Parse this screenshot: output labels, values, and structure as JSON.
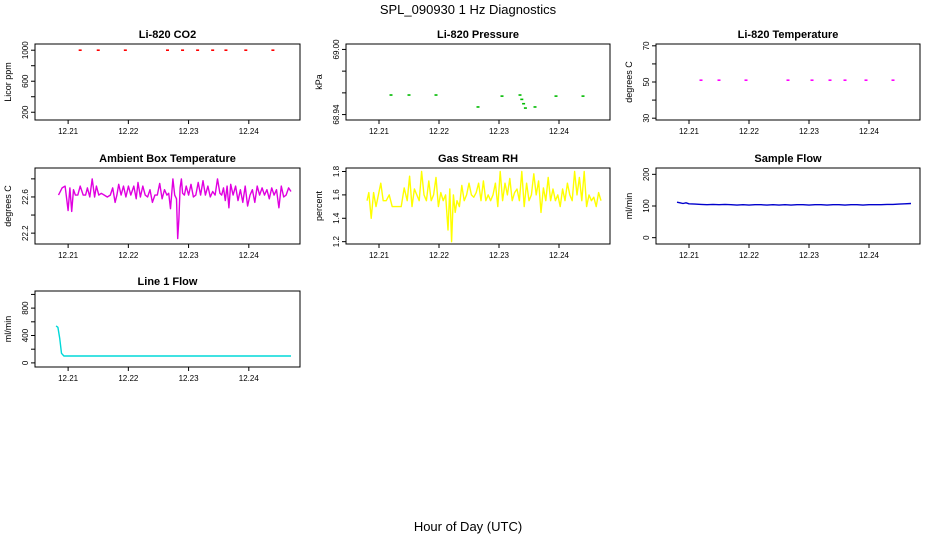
{
  "figure": {
    "title": "SPL_090930  1 Hz Diagnostics",
    "xlabel": "Hour of Day (UTC)"
  },
  "chart_data": [
    {
      "type": "scatter",
      "title": "Li-820 CO2",
      "ylabel": "Licor ppm",
      "color": "#ff0000",
      "xlim": [
        12.2045,
        12.2485
      ],
      "ylim": [
        100,
        1080
      ],
      "xticks": [
        12.21,
        12.22,
        12.23,
        12.24
      ],
      "xtick_labels": [
        "12.21",
        "12.22",
        "12.23",
        "12.24"
      ],
      "yticks": [
        200,
        400,
        600,
        800,
        1000
      ],
      "ytick_labels": [
        "200",
        "",
        "600",
        "",
        "1000"
      ],
      "x": [
        12.212,
        12.215,
        12.2195,
        12.2265,
        12.229,
        12.2315,
        12.234,
        12.2362,
        12.2395,
        12.244
      ],
      "y": [
        1000,
        1000,
        1000,
        1000,
        1000,
        1000,
        1000,
        1000,
        1000,
        1000
      ]
    },
    {
      "type": "scatter",
      "title": "Li-820 Pressure",
      "ylabel": "kPa",
      "color": "#00bb00",
      "xlim": [
        12.2045,
        12.2485
      ],
      "ylim": [
        68.935,
        69.005
      ],
      "xticks": [
        12.21,
        12.22,
        12.23,
        12.24
      ],
      "xtick_labels": [
        "12.21",
        "12.22",
        "12.23",
        "12.24"
      ],
      "yticks": [
        68.94,
        68.96,
        68.98,
        69.0
      ],
      "ytick_labels": [
        "68.94",
        "",
        "",
        "69.00"
      ],
      "x": [
        12.212,
        12.215,
        12.2195,
        12.2265,
        12.2305,
        12.2335,
        12.2338,
        12.2341,
        12.2344,
        12.236,
        12.2395,
        12.244
      ],
      "y": [
        68.958,
        68.958,
        68.958,
        68.947,
        68.957,
        68.958,
        68.954,
        68.95,
        68.946,
        68.947,
        68.957,
        68.957
      ]
    },
    {
      "type": "scatter",
      "title": "Li-820 Temperature",
      "ylabel": "degrees C",
      "color": "#ff00ff",
      "xlim": [
        12.2045,
        12.2485
      ],
      "ylim": [
        29,
        71
      ],
      "xticks": [
        12.21,
        12.22,
        12.23,
        12.24
      ],
      "xtick_labels": [
        "12.21",
        "12.22",
        "12.23",
        "12.24"
      ],
      "yticks": [
        30,
        40,
        50,
        60,
        70
      ],
      "ytick_labels": [
        "30",
        "",
        "50",
        "",
        "70"
      ],
      "x": [
        12.212,
        12.215,
        12.2195,
        12.2265,
        12.2305,
        12.2335,
        12.236,
        12.2395,
        12.244
      ],
      "y": [
        51,
        51,
        51,
        51,
        51,
        51,
        51,
        51,
        51
      ]
    },
    {
      "type": "line",
      "title": "Ambient Box Temperature",
      "ylabel": "degrees C",
      "color": "#e000e0",
      "xlim": [
        12.2045,
        12.2485
      ],
      "ylim": [
        22.08,
        22.92
      ],
      "xticks": [
        12.21,
        12.22,
        12.23,
        12.24
      ],
      "xtick_labels": [
        "12.21",
        "12.22",
        "12.23",
        "12.24"
      ],
      "yticks": [
        22.2,
        22.4,
        22.6,
        22.8
      ],
      "ytick_labels": [
        "22.2",
        "",
        "22.6",
        ""
      ],
      "x": [
        12.2084,
        12.209,
        12.2095,
        12.21,
        12.2103,
        12.2106,
        12.2109,
        12.2112,
        12.2116,
        12.212,
        12.2125,
        12.2129,
        12.2132,
        12.2136,
        12.214,
        12.2144,
        12.2147,
        12.2151,
        12.2155,
        12.216,
        12.2165,
        12.217,
        12.2174,
        12.2178,
        12.2181,
        12.2184,
        12.2188,
        12.2192,
        12.2196,
        12.22,
        12.2204,
        12.2209,
        12.2213,
        12.2216,
        12.222,
        12.2224,
        12.2228,
        12.2232,
        12.2236,
        12.224,
        12.2244,
        12.2248,
        12.2252,
        12.2256,
        12.226,
        12.2264,
        12.2267,
        12.227,
        12.2274,
        12.2277,
        12.228,
        12.2282,
        12.2284,
        12.2286,
        12.2288,
        12.229,
        12.2293,
        12.2296,
        12.23,
        12.2304,
        12.2308,
        12.2312,
        12.2316,
        12.232,
        12.2324,
        12.2328,
        12.2332,
        12.2336,
        12.234,
        12.2344,
        12.2348,
        12.2352,
        12.2355,
        12.2358,
        12.2361,
        12.2364,
        12.2367,
        12.237,
        12.2374,
        12.2378,
        12.2382,
        12.2386,
        12.239,
        12.2394,
        12.2398,
        12.2402,
        12.2406,
        12.241,
        12.2414,
        12.2418,
        12.2422,
        12.2426,
        12.243,
        12.2434,
        12.2438,
        12.2442,
        12.2446,
        12.245,
        12.2454,
        12.2458,
        12.2462,
        12.2466,
        12.247
      ],
      "y": [
        22.62,
        22.7,
        22.72,
        22.45,
        22.7,
        22.44,
        22.68,
        22.62,
        22.62,
        22.72,
        22.62,
        22.62,
        22.7,
        22.6,
        22.8,
        22.6,
        22.72,
        22.62,
        22.64,
        22.62,
        22.6,
        22.62,
        22.7,
        22.54,
        22.62,
        22.74,
        22.62,
        22.72,
        22.6,
        22.72,
        22.62,
        22.72,
        22.58,
        22.76,
        22.6,
        22.72,
        22.62,
        22.6,
        22.68,
        22.54,
        22.62,
        22.62,
        22.75,
        22.58,
        22.68,
        22.62,
        22.64,
        22.47,
        22.8,
        22.62,
        22.58,
        22.14,
        22.36,
        22.7,
        22.8,
        22.64,
        22.62,
        22.72,
        22.62,
        22.74,
        22.6,
        22.62,
        22.76,
        22.62,
        22.78,
        22.62,
        22.72,
        22.6,
        22.66,
        22.62,
        22.8,
        22.64,
        22.62,
        22.7,
        22.56,
        22.72,
        22.48,
        22.74,
        22.62,
        22.72,
        22.56,
        22.68,
        22.54,
        22.72,
        22.5,
        22.62,
        22.68,
        22.54,
        22.72,
        22.62,
        22.7,
        22.62,
        22.68,
        22.58,
        22.7,
        22.62,
        22.68,
        22.48,
        22.72,
        22.6,
        22.62,
        22.7,
        22.66
      ]
    },
    {
      "type": "line",
      "title": "Gas Stream RH",
      "ylabel": "percent",
      "color": "#ffff00",
      "xlim": [
        12.2045,
        12.2485
      ],
      "ylim": [
        1.18,
        1.83
      ],
      "xticks": [
        12.21,
        12.22,
        12.23,
        12.24
      ],
      "xtick_labels": [
        "12.21",
        "12.22",
        "12.23",
        "12.24"
      ],
      "yticks": [
        1.2,
        1.4,
        1.6,
        1.8
      ],
      "ytick_labels": [
        "1.2",
        "1.4",
        "1.6",
        "1.8"
      ],
      "x": [
        12.208,
        12.2083,
        12.2087,
        12.2091,
        12.2095,
        12.2099,
        12.2103,
        12.2107,
        12.2112,
        12.2117,
        12.2122,
        12.2127,
        12.2132,
        12.2137,
        12.2142,
        12.2147,
        12.2151,
        12.2155,
        12.2159,
        12.2163,
        12.2167,
        12.2171,
        12.2175,
        12.2179,
        12.2183,
        12.2187,
        12.2191,
        12.2195,
        12.2199,
        12.2203,
        12.2207,
        12.2211,
        12.2215,
        12.2218,
        12.2221,
        12.2224,
        12.2227,
        12.223,
        12.2234,
        12.2238,
        12.2242,
        12.2246,
        12.225,
        12.2254,
        12.2258,
        12.2262,
        12.2266,
        12.227,
        12.2274,
        12.2278,
        12.2282,
        12.2286,
        12.229,
        12.2294,
        12.2298,
        12.2302,
        12.2306,
        12.231,
        12.2314,
        12.2318,
        12.2322,
        12.2326,
        12.233,
        12.2334,
        12.2338,
        12.2342,
        12.2346,
        12.235,
        12.2354,
        12.2358,
        12.2362,
        12.2366,
        12.237,
        12.2374,
        12.2378,
        12.2382,
        12.2386,
        12.239,
        12.2394,
        12.2398,
        12.2402,
        12.2406,
        12.241,
        12.2414,
        12.2418,
        12.2422,
        12.2426,
        12.243,
        12.2434,
        12.2438,
        12.2442,
        12.2446,
        12.245,
        12.2454,
        12.2458,
        12.2462,
        12.2466,
        12.247
      ],
      "y": [
        1.55,
        1.62,
        1.4,
        1.62,
        1.5,
        1.6,
        1.7,
        1.55,
        1.55,
        1.6,
        1.5,
        1.5,
        1.5,
        1.5,
        1.66,
        1.55,
        1.76,
        1.5,
        1.65,
        1.6,
        1.55,
        1.8,
        1.6,
        1.55,
        1.72,
        1.55,
        1.6,
        1.75,
        1.5,
        1.62,
        1.55,
        1.6,
        1.3,
        1.65,
        1.2,
        1.6,
        1.45,
        1.55,
        1.5,
        1.68,
        1.55,
        1.6,
        1.7,
        1.6,
        1.58,
        1.62,
        1.7,
        1.55,
        1.72,
        1.55,
        1.6,
        1.55,
        1.6,
        1.7,
        1.5,
        1.8,
        1.55,
        1.7,
        1.6,
        1.74,
        1.55,
        1.62,
        1.65,
        1.55,
        1.8,
        1.5,
        1.7,
        1.55,
        1.6,
        1.78,
        1.6,
        1.72,
        1.45,
        1.66,
        1.55,
        1.75,
        1.55,
        1.65,
        1.55,
        1.6,
        1.5,
        1.65,
        1.55,
        1.7,
        1.6,
        1.55,
        1.8,
        1.6,
        1.75,
        1.55,
        1.8,
        1.5,
        1.6,
        1.55,
        1.58,
        1.5,
        1.62,
        1.55
      ]
    },
    {
      "type": "line",
      "title": "Sample Flow",
      "ylabel": "ml/min",
      "color": "#0000cc",
      "xlim": [
        12.2045,
        12.2485
      ],
      "ylim": [
        -20,
        220
      ],
      "xticks": [
        12.21,
        12.22,
        12.23,
        12.24
      ],
      "xtick_labels": [
        "12.21",
        "12.22",
        "12.23",
        "12.24"
      ],
      "yticks": [
        0,
        100,
        200
      ],
      "ytick_labels": [
        "0",
        "100",
        "200"
      ],
      "x": [
        12.208,
        12.2085,
        12.209,
        12.2095,
        12.21,
        12.211,
        12.212,
        12.213,
        12.214,
        12.215,
        12.216,
        12.217,
        12.218,
        12.219,
        12.22,
        12.221,
        12.222,
        12.223,
        12.224,
        12.225,
        12.226,
        12.227,
        12.228,
        12.229,
        12.23,
        12.231,
        12.232,
        12.233,
        12.234,
        12.235,
        12.236,
        12.237,
        12.238,
        12.239,
        12.24,
        12.241,
        12.242,
        12.243,
        12.244,
        12.245,
        12.246,
        12.247
      ],
      "y": [
        112,
        110,
        108,
        110,
        107,
        106,
        105,
        104,
        105,
        104,
        105,
        104,
        103,
        104,
        103,
        104,
        104,
        103,
        104,
        103,
        104,
        103,
        104,
        104,
        103,
        104,
        104,
        103,
        104,
        104,
        103,
        104,
        104,
        103,
        104,
        104,
        104,
        105,
        105,
        106,
        107,
        108
      ]
    },
    {
      "type": "line",
      "title": "Line 1 Flow",
      "ylabel": "ml/min",
      "color": "#00d8d8",
      "xlim": [
        12.2045,
        12.2485
      ],
      "ylim": [
        -60,
        1050
      ],
      "xticks": [
        12.21,
        12.22,
        12.23,
        12.24
      ],
      "xtick_labels": [
        "12.21",
        "12.22",
        "12.23",
        "12.24"
      ],
      "yticks": [
        0,
        200,
        400,
        600,
        800,
        1000
      ],
      "ytick_labels": [
        "0",
        "",
        "400",
        "",
        "800",
        ""
      ],
      "x": [
        12.208,
        12.2083,
        12.2086,
        12.2089,
        12.2093,
        12.21,
        12.215,
        12.22,
        12.225,
        12.23,
        12.235,
        12.24,
        12.245,
        12.247
      ],
      "y": [
        540,
        520,
        360,
        140,
        100,
        100,
        100,
        100,
        100,
        100,
        100,
        100,
        100,
        100
      ]
    }
  ]
}
